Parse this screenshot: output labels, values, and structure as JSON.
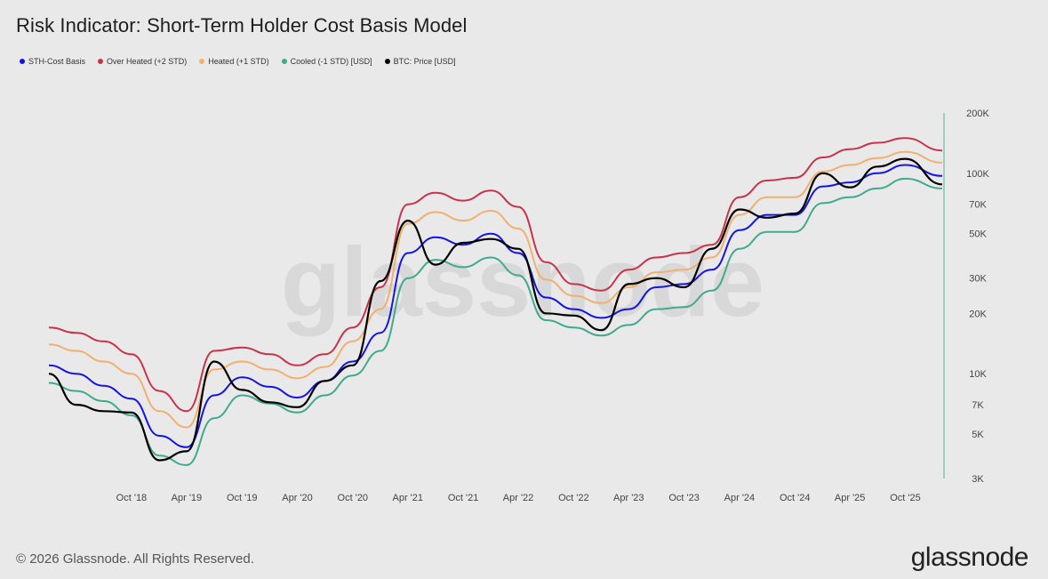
{
  "title": "Risk Indicator: Short-Term Holder Cost Basis Model",
  "footer": "© 2026 Glassnode. All Rights Reserved.",
  "brand": "glassnode",
  "watermark": "glassnode",
  "colors": {
    "background": "#e9e9e9",
    "sth": "#1515e0",
    "over": "#c8334a",
    "heated": "#f0b070",
    "cooled": "#40aa8c",
    "price": "#000000",
    "axis": "#4fb596"
  },
  "chart_data": {
    "type": "line",
    "title": "Risk Indicator: Short-Term Holder Cost Basis Model",
    "y_scale": "log",
    "ylim": [
      3000,
      200000
    ],
    "y_ticks": [
      {
        "value": 3000,
        "label": "3K"
      },
      {
        "value": 5000,
        "label": "5K"
      },
      {
        "value": 7000,
        "label": "7K"
      },
      {
        "value": 10000,
        "label": "10K"
      },
      {
        "value": 20000,
        "label": "20K"
      },
      {
        "value": 30000,
        "label": "30K"
      },
      {
        "value": 50000,
        "label": "50K"
      },
      {
        "value": 70000,
        "label": "70K"
      },
      {
        "value": 100000,
        "label": "100K"
      },
      {
        "value": 200000,
        "label": "200K"
      }
    ],
    "x_start": "2018-01-01",
    "x_end": "2026-01-31",
    "x_ticks": [
      {
        "date": "2018-10-01",
        "label": "Oct '18"
      },
      {
        "date": "2019-04-01",
        "label": "Apr '19"
      },
      {
        "date": "2019-10-01",
        "label": "Oct '19"
      },
      {
        "date": "2020-04-01",
        "label": "Apr '20"
      },
      {
        "date": "2020-10-01",
        "label": "Oct '20"
      },
      {
        "date": "2021-04-01",
        "label": "Apr '21"
      },
      {
        "date": "2021-10-01",
        "label": "Oct '21"
      },
      {
        "date": "2022-04-01",
        "label": "Apr '22"
      },
      {
        "date": "2022-10-01",
        "label": "Oct '22"
      },
      {
        "date": "2023-04-01",
        "label": "Apr '23"
      },
      {
        "date": "2023-10-01",
        "label": "Oct '23"
      },
      {
        "date": "2024-04-01",
        "label": "Apr '24"
      },
      {
        "date": "2024-10-01",
        "label": "Oct '24"
      },
      {
        "date": "2025-04-01",
        "label": "Apr '25"
      },
      {
        "date": "2025-10-01",
        "label": "Oct '25"
      }
    ],
    "x": [
      "2018-01-01",
      "2018-04-01",
      "2018-07-01",
      "2018-10-01",
      "2019-01-01",
      "2019-04-01",
      "2019-07-01",
      "2019-10-01",
      "2020-01-01",
      "2020-04-01",
      "2020-07-01",
      "2020-10-01",
      "2021-01-01",
      "2021-04-01",
      "2021-07-01",
      "2021-10-01",
      "2022-01-01",
      "2022-04-01",
      "2022-07-01",
      "2022-10-01",
      "2023-01-01",
      "2023-04-01",
      "2023-07-01",
      "2023-10-01",
      "2024-01-01",
      "2024-04-01",
      "2024-07-01",
      "2024-10-01",
      "2025-01-01",
      "2025-04-01",
      "2025-07-01",
      "2025-10-01",
      "2026-01-31"
    ],
    "series": [
      {
        "name": "STH-Cost Basis",
        "color": "#1515e0",
        "values": [
          11000,
          10000,
          8700,
          7500,
          4900,
          4300,
          7800,
          9600,
          8600,
          7600,
          9200,
          11500,
          16000,
          40000,
          48000,
          44000,
          50000,
          40000,
          24000,
          21000,
          19000,
          21000,
          27000,
          28000,
          33000,
          52000,
          62000,
          62000,
          86000,
          90000,
          100000,
          110000,
          97000
        ]
      },
      {
        "name": "Over Heated (+2 STD)",
        "color": "#c8334a",
        "values": [
          17000,
          16000,
          14500,
          12500,
          8200,
          6500,
          13000,
          13500,
          12500,
          11000,
          12500,
          17000,
          27000,
          70000,
          80000,
          73000,
          82000,
          68000,
          36000,
          28000,
          26000,
          33000,
          38000,
          40000,
          44000,
          76000,
          92000,
          95000,
          120000,
          132000,
          142000,
          150000,
          130000
        ]
      },
      {
        "name": "Heated (+1 STD)",
        "color": "#f0b070",
        "values": [
          14000,
          13000,
          11500,
          10000,
          6500,
          5400,
          10500,
          11500,
          10500,
          9500,
          10800,
          14500,
          21000,
          56000,
          64000,
          58000,
          65000,
          53000,
          29500,
          24500,
          22500,
          27000,
          32000,
          33000,
          38000,
          62000,
          76000,
          76000,
          102000,
          110000,
          119000,
          128000,
          113000
        ]
      },
      {
        "name": "Cooled (-1 STD) [USD]",
        "color": "#40aa8c",
        "values": [
          9000,
          8200,
          7300,
          6200,
          3900,
          3500,
          6000,
          7800,
          7100,
          6400,
          7800,
          9800,
          13000,
          30000,
          37000,
          34000,
          38000,
          31000,
          18500,
          17000,
          15500,
          17500,
          21000,
          21500,
          26000,
          42000,
          51000,
          51000,
          71000,
          76000,
          84000,
          94000,
          84000
        ]
      },
      {
        "name": "BTC: Price [USD]",
        "color": "#000000",
        "values": [
          10000,
          7000,
          6500,
          6400,
          3700,
          4100,
          11500,
          8300,
          7200,
          6800,
          9200,
          11000,
          29000,
          58000,
          35000,
          45000,
          47000,
          42000,
          20000,
          19500,
          16500,
          28000,
          30000,
          27000,
          42000,
          66000,
          60000,
          63000,
          100000,
          85000,
          108000,
          118000,
          88000
        ]
      }
    ]
  }
}
